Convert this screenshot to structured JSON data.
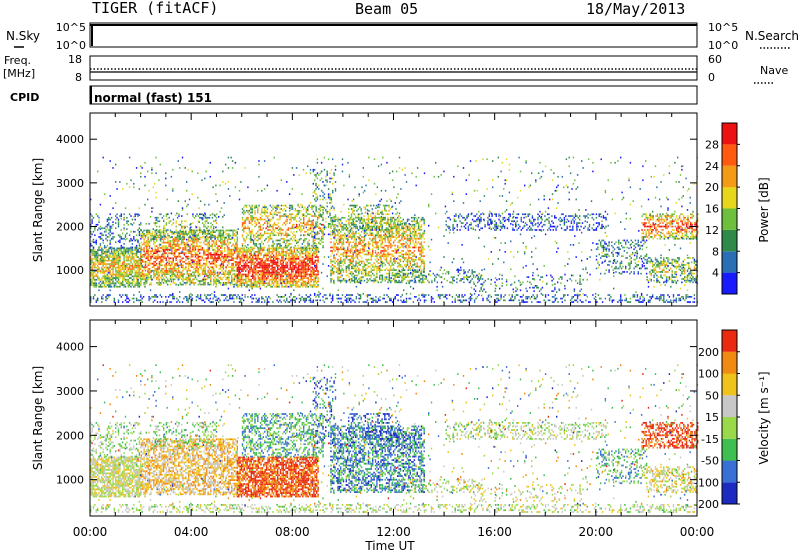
{
  "header": {
    "title": "TIGER (fitACF)",
    "beam": "Beam 05",
    "date": "18/May/2013"
  },
  "top_panels": {
    "nsky_label": "N.Sky",
    "nsky_ticks": [
      "10^5",
      "10^0"
    ],
    "nsearch_label": "N.Search",
    "nsearch_ticks": [
      "10^5",
      "10^0"
    ],
    "freq_label": "Freq.",
    "freq_unit": "[MHz]",
    "freq_ticks": [
      "18",
      "8"
    ],
    "nave_label": "Nave",
    "nave_ticks": [
      "60",
      "0"
    ],
    "cpid_label": "CPID",
    "cpid_text": "normal (fast) 151"
  },
  "chart_data": [
    {
      "type": "heatmap",
      "title": "",
      "ylabel": "Slant Range [km]",
      "xlabel": "",
      "yticks": [
        "1000",
        "2000",
        "3000",
        "4000"
      ],
      "ylim": [
        180,
        4600
      ],
      "xlim_hours": [
        0,
        24
      ],
      "colorbar": {
        "label": "Power [dB]",
        "ticks": [
          "4",
          "8",
          "12",
          "16",
          "20",
          "24",
          "28"
        ],
        "range": [
          0,
          30
        ],
        "colors": [
          "#1a1aff",
          "#2a6fb5",
          "#2f8a4a",
          "#6dbf3c",
          "#e7d71c",
          "#f39b16",
          "#ff5a10",
          "#ee1111"
        ]
      }
    },
    {
      "type": "heatmap",
      "title": "",
      "ylabel": "Slant Range [km]",
      "xlabel": "Time UT",
      "yticks": [
        "1000",
        "2000",
        "3000",
        "4000"
      ],
      "ylim": [
        180,
        4600
      ],
      "xlim_hours": [
        0,
        24
      ],
      "colorbar": {
        "label": "Velocity [m s⁻¹]",
        "ticks": [
          "200",
          "100",
          "50",
          "15",
          "-15",
          "-50",
          "-100",
          "-200"
        ],
        "colors": [
          "#1c2bbf",
          "#3a6fd6",
          "#3fbf4f",
          "#9ad94a",
          "#c8c8c8",
          "#f0c21c",
          "#f08a12",
          "#ea2a10"
        ]
      }
    }
  ],
  "xticks": [
    "00:00",
    "04:00",
    "08:00",
    "12:00",
    "16:00",
    "20:00",
    "00:00"
  ]
}
